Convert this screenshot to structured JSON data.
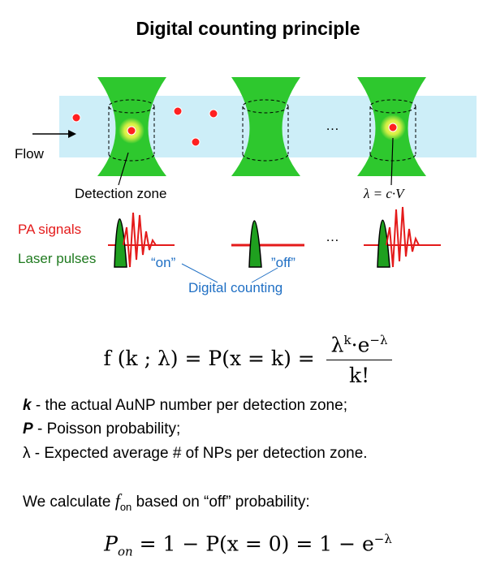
{
  "title": "Digital counting principle",
  "labels": {
    "flow": "Flow",
    "detection_zone": "Detection zone",
    "lambda_def": "λ = c·V",
    "pa_signals": "PA signals",
    "laser_pulses": "Laser pulses",
    "on": "“on”",
    "off": "”off”",
    "digital_counting": "Digital counting",
    "ellipsis": "…"
  },
  "formula": {
    "lhs": "f (k ; λ) = P(x = k) =",
    "numerator_base": "λ",
    "numerator_sup": "k",
    "numerator_mid": "·e",
    "numerator_sup2": "−λ",
    "denominator": "k!"
  },
  "definitions": [
    {
      "symbol": "k",
      "text": " - the actual AuNP number per detection zone;"
    },
    {
      "symbol": "P",
      "text": " - Poisson probability;"
    },
    {
      "symbol": "λ",
      "text": " - Expected average # of NPs per detection zone."
    }
  ],
  "calc": {
    "prefix": "We calculate ",
    "symbol": "f",
    "sub": "on",
    "suffix": " based on “off” probability:"
  },
  "pon": {
    "lhs": "P",
    "lhs_sub": "on",
    "rhs": " = 1 − P(x = 0) = 1 − e",
    "rhs_sup": "−λ"
  },
  "colors": {
    "flow_channel": "#cdeef8",
    "laser_beam": "#2ec82e",
    "particle": "#ff2020",
    "pa_signal": "#e41a1a",
    "laser_pulse": "#1fa01f",
    "counting_text": "#1f6fc4"
  }
}
